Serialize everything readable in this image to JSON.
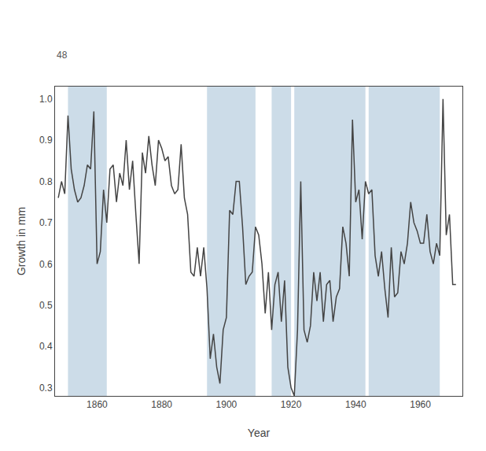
{
  "chart_data": {
    "type": "line",
    "xlabel": "Year",
    "ylabel": "Growth in mm",
    "annotations": [
      "48"
    ],
    "x": [
      1848,
      1849,
      1850,
      1851,
      1852,
      1853,
      1854,
      1855,
      1856,
      1857,
      1858,
      1859,
      1860,
      1861,
      1862,
      1863,
      1864,
      1865,
      1866,
      1867,
      1868,
      1869,
      1870,
      1871,
      1872,
      1873,
      1874,
      1875,
      1876,
      1877,
      1878,
      1879,
      1880,
      1881,
      1882,
      1883,
      1884,
      1885,
      1886,
      1887,
      1888,
      1889,
      1890,
      1891,
      1892,
      1893,
      1894,
      1895,
      1896,
      1897,
      1898,
      1899,
      1900,
      1901,
      1902,
      1903,
      1904,
      1905,
      1906,
      1907,
      1908,
      1909,
      1910,
      1911,
      1912,
      1913,
      1914,
      1915,
      1916,
      1917,
      1918,
      1919,
      1920,
      1921,
      1922,
      1923,
      1924,
      1925,
      1926,
      1927,
      1928,
      1929,
      1930,
      1931,
      1932,
      1933,
      1934,
      1935,
      1936,
      1937,
      1938,
      1939,
      1940,
      1941,
      1942,
      1943,
      1944,
      1945,
      1946,
      1947,
      1948,
      1949,
      1950,
      1951,
      1952,
      1953,
      1954,
      1955,
      1956,
      1957,
      1958,
      1959,
      1960,
      1961,
      1962,
      1963,
      1964,
      1965,
      1966,
      1967,
      1968,
      1969,
      1970,
      1971
    ],
    "values": [
      0.76,
      0.8,
      0.77,
      0.96,
      0.83,
      0.78,
      0.75,
      0.76,
      0.79,
      0.84,
      0.83,
      0.97,
      0.6,
      0.63,
      0.78,
      0.7,
      0.83,
      0.84,
      0.75,
      0.82,
      0.79,
      0.9,
      0.78,
      0.85,
      0.72,
      0.6,
      0.87,
      0.82,
      0.91,
      0.84,
      0.79,
      0.9,
      0.88,
      0.85,
      0.86,
      0.79,
      0.77,
      0.78,
      0.89,
      0.76,
      0.72,
      0.58,
      0.57,
      0.64,
      0.57,
      0.64,
      0.54,
      0.37,
      0.43,
      0.35,
      0.31,
      0.44,
      0.47,
      0.73,
      0.72,
      0.8,
      0.8,
      0.69,
      0.55,
      0.57,
      0.58,
      0.69,
      0.67,
      0.6,
      0.48,
      0.58,
      0.44,
      0.55,
      0.58,
      0.46,
      0.56,
      0.35,
      0.3,
      0.28,
      0.44,
      0.8,
      0.44,
      0.41,
      0.45,
      0.58,
      0.51,
      0.58,
      0.46,
      0.55,
      0.56,
      0.46,
      0.52,
      0.54,
      0.69,
      0.65,
      0.57,
      0.95,
      0.75,
      0.78,
      0.66,
      0.8,
      0.77,
      0.78,
      0.62,
      0.57,
      0.63,
      0.54,
      0.47,
      0.64,
      0.52,
      0.53,
      0.63,
      0.6,
      0.65,
      0.75,
      0.7,
      0.68,
      0.65,
      0.65,
      0.72,
      0.63,
      0.6,
      0.65,
      0.62,
      1.0,
      0.67,
      0.72,
      0.55,
      0.55
    ],
    "color": "#444444",
    "bands": {
      "ranges": [
        [
          1851,
          1863
        ],
        [
          1894,
          1909
        ],
        [
          1914,
          1920
        ],
        [
          1921,
          1943
        ],
        [
          1944,
          1966
        ]
      ],
      "color": "#ccdce8"
    },
    "xlim": [
      1847,
      1973
    ],
    "xticks": [
      1860,
      1880,
      1900,
      1920,
      1940,
      1960
    ],
    "ylim": [
      0.28,
      1.03
    ],
    "yticks": [
      0.3,
      0.4,
      0.5,
      0.6,
      0.7,
      0.8,
      0.9,
      {
        "value": 1.0,
        "label": "1.0"
      }
    ],
    "grid": false
  }
}
